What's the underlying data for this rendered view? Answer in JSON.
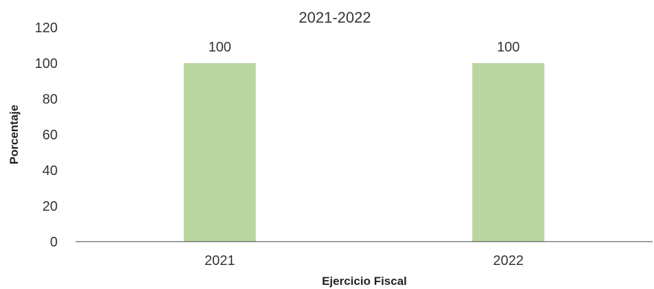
{
  "colors": {
    "bar": "#b9d6a0",
    "axis": "#404040",
    "text": "#333333"
  },
  "chart_data": {
    "type": "bar",
    "title": "2021-2022",
    "xlabel": "Ejercicio Fiscal",
    "ylabel": "Porcentaje",
    "categories": [
      "2021",
      "2022"
    ],
    "values": [
      100,
      100
    ],
    "data_labels": [
      "100",
      "100"
    ],
    "ylim": [
      0,
      120
    ],
    "yticks": [
      "0",
      "20",
      "40",
      "60",
      "80",
      "100",
      "120"
    ],
    "grid": false,
    "legend": "none"
  }
}
